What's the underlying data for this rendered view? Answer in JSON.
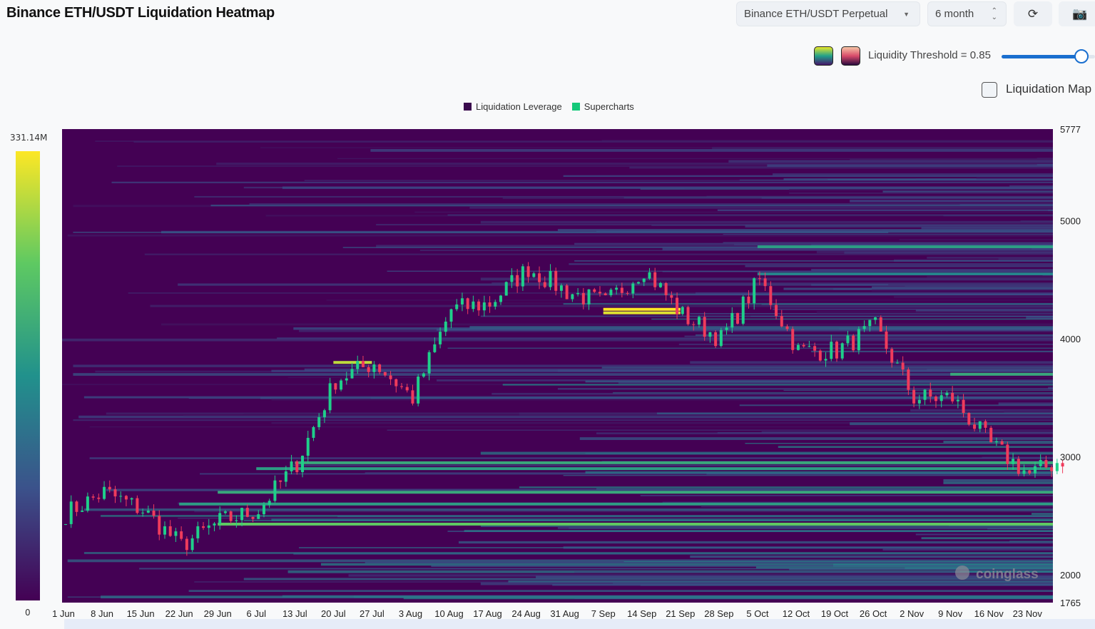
{
  "header": {
    "title": "Binance ETH/USDT Liquidation Heatmap",
    "pair_select": "Binance ETH/USDT Perpetual",
    "range_select": "6 month",
    "refresh_icon": "refresh-icon",
    "camera_icon": "camera-icon"
  },
  "controls": {
    "threshold_label": "Liquidity Threshold = 0.85",
    "threshold_value": 0.85,
    "liquidation_map_label": "Liquidation Map",
    "liquidation_map_checked": false,
    "palette_options": [
      "viridis",
      "magma"
    ]
  },
  "colorbar": {
    "max_label": "331.14M",
    "min_label": "0"
  },
  "watermark": "coinglass",
  "chart_data": {
    "type": "heatmap",
    "legend": [
      {
        "name": "Liquidation Leverage",
        "color": "#440154"
      },
      {
        "name": "Supercharts",
        "color": "#14c97a"
      }
    ],
    "legend_position": "top-center",
    "x_ticks": [
      "1 Jun",
      "8 Jun",
      "15 Jun",
      "22 Jun",
      "29 Jun",
      "6 Jul",
      "13 Jul",
      "20 Jul",
      "27 Jul",
      "3 Aug",
      "10 Aug",
      "17 Aug",
      "24 Aug",
      "31 Aug",
      "7 Sep",
      "14 Sep",
      "21 Sep",
      "28 Sep",
      "5 Oct",
      "12 Oct",
      "19 Oct",
      "26 Oct",
      "2 Nov",
      "9 Nov",
      "16 Nov",
      "23 Nov"
    ],
    "y_ticks": [
      5777,
      5000,
      4000,
      3000,
      2000,
      1765
    ],
    "ylim": [
      1765,
      5777
    ],
    "price_weekly": [
      2520,
      2700,
      2550,
      2250,
      2450,
      2550,
      2950,
      3650,
      3800,
      3500,
      4250,
      4300,
      4600,
      4400,
      4300,
      4600,
      4200,
      4000,
      4500,
      3900,
      3900,
      4100,
      3500,
      3500,
      3100,
      2850,
      3000
    ],
    "liquidation_levels": [
      {
        "price": 4780,
        "start": "5 Oct",
        "intensity": 0.55
      },
      {
        "price": 4550,
        "start": "5 Oct",
        "intensity": 0.45
      },
      {
        "price": 4250,
        "start": "7 Sep",
        "end": "21 Sep",
        "intensity": 1.0
      },
      {
        "price": 4220,
        "start": "7 Sep",
        "end": "21 Sep",
        "intensity": 0.95
      },
      {
        "price": 3700,
        "start": "9 Nov",
        "intensity": 0.6
      },
      {
        "price": 3800,
        "start": "20 Jul",
        "end": "27 Jul",
        "intensity": 0.9
      },
      {
        "price": 2950,
        "start": "13 Jul",
        "intensity": 0.6
      },
      {
        "price": 2900,
        "start": "6 Jul",
        "intensity": 0.55
      },
      {
        "price": 2700,
        "start": "29 Jun",
        "intensity": 0.6
      },
      {
        "price": 2600,
        "start": "22 Jun",
        "intensity": 0.55
      },
      {
        "price": 2430,
        "start": "29 Jun",
        "intensity": 0.75
      }
    ]
  }
}
